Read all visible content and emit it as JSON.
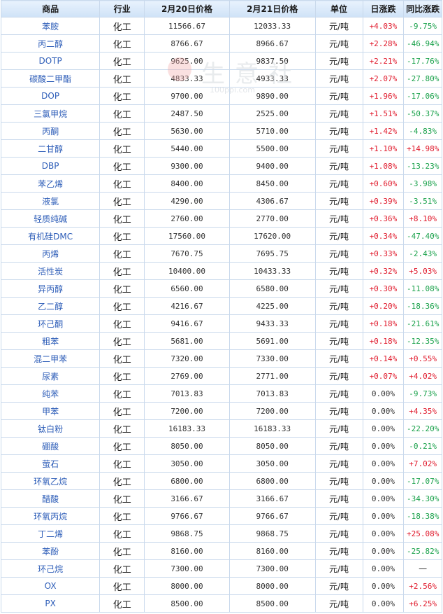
{
  "headers": [
    "商品",
    "行业",
    "2月20日价格",
    "2月21日价格",
    "单位",
    "日涨跌",
    "同比涨跌"
  ],
  "watermark": {
    "text": "生意社",
    "url": "100ppi.com"
  },
  "rows": [
    {
      "name": "苯胺",
      "cat": "化工",
      "p1": "11566.67",
      "p2": "12033.33",
      "unit": "元/吨",
      "day": "+4.03%",
      "dayDir": "up",
      "yoy": "-9.75%",
      "yoyDir": "down"
    },
    {
      "name": "丙二醇",
      "cat": "化工",
      "p1": "8766.67",
      "p2": "8966.67",
      "unit": "元/吨",
      "day": "+2.28%",
      "dayDir": "up",
      "yoy": "-46.94%",
      "yoyDir": "down"
    },
    {
      "name": "DOTP",
      "cat": "化工",
      "p1": "9625.00",
      "p2": "9837.50",
      "unit": "元/吨",
      "day": "+2.21%",
      "dayDir": "up",
      "yoy": "-17.76%",
      "yoyDir": "down"
    },
    {
      "name": "碳酸二甲酯",
      "cat": "化工",
      "p1": "4833.33",
      "p2": "4933.33",
      "unit": "元/吨",
      "day": "+2.07%",
      "dayDir": "up",
      "yoy": "-27.80%",
      "yoyDir": "down"
    },
    {
      "name": "DOP",
      "cat": "化工",
      "p1": "9700.00",
      "p2": "9890.00",
      "unit": "元/吨",
      "day": "+1.96%",
      "dayDir": "up",
      "yoy": "-17.06%",
      "yoyDir": "down"
    },
    {
      "name": "三氯甲烷",
      "cat": "化工",
      "p1": "2487.50",
      "p2": "2525.00",
      "unit": "元/吨",
      "day": "+1.51%",
      "dayDir": "up",
      "yoy": "-50.37%",
      "yoyDir": "down"
    },
    {
      "name": "丙酮",
      "cat": "化工",
      "p1": "5630.00",
      "p2": "5710.00",
      "unit": "元/吨",
      "day": "+1.42%",
      "dayDir": "up",
      "yoy": "-4.83%",
      "yoyDir": "down"
    },
    {
      "name": "二甘醇",
      "cat": "化工",
      "p1": "5440.00",
      "p2": "5500.00",
      "unit": "元/吨",
      "day": "+1.10%",
      "dayDir": "up",
      "yoy": "+14.98%",
      "yoyDir": "up"
    },
    {
      "name": "DBP",
      "cat": "化工",
      "p1": "9300.00",
      "p2": "9400.00",
      "unit": "元/吨",
      "day": "+1.08%",
      "dayDir": "up",
      "yoy": "-13.23%",
      "yoyDir": "down"
    },
    {
      "name": "苯乙烯",
      "cat": "化工",
      "p1": "8400.00",
      "p2": "8450.00",
      "unit": "元/吨",
      "day": "+0.60%",
      "dayDir": "up",
      "yoy": "-3.98%",
      "yoyDir": "down"
    },
    {
      "name": "液氯",
      "cat": "化工",
      "p1": "4290.00",
      "p2": "4306.67",
      "unit": "元/吨",
      "day": "+0.39%",
      "dayDir": "up",
      "yoy": "-3.51%",
      "yoyDir": "down"
    },
    {
      "name": "轻质纯碱",
      "cat": "化工",
      "p1": "2760.00",
      "p2": "2770.00",
      "unit": "元/吨",
      "day": "+0.36%",
      "dayDir": "up",
      "yoy": "+8.10%",
      "yoyDir": "up"
    },
    {
      "name": "有机硅DMC",
      "cat": "化工",
      "p1": "17560.00",
      "p2": "17620.00",
      "unit": "元/吨",
      "day": "+0.34%",
      "dayDir": "up",
      "yoy": "-47.40%",
      "yoyDir": "down"
    },
    {
      "name": "丙烯",
      "cat": "化工",
      "p1": "7670.75",
      "p2": "7695.75",
      "unit": "元/吨",
      "day": "+0.33%",
      "dayDir": "up",
      "yoy": "-2.43%",
      "yoyDir": "down"
    },
    {
      "name": "活性炭",
      "cat": "化工",
      "p1": "10400.00",
      "p2": "10433.33",
      "unit": "元/吨",
      "day": "+0.32%",
      "dayDir": "up",
      "yoy": "+5.03%",
      "yoyDir": "up"
    },
    {
      "name": "异丙醇",
      "cat": "化工",
      "p1": "6560.00",
      "p2": "6580.00",
      "unit": "元/吨",
      "day": "+0.30%",
      "dayDir": "up",
      "yoy": "-11.08%",
      "yoyDir": "down"
    },
    {
      "name": "乙二醇",
      "cat": "化工",
      "p1": "4216.67",
      "p2": "4225.00",
      "unit": "元/吨",
      "day": "+0.20%",
      "dayDir": "up",
      "yoy": "-18.36%",
      "yoyDir": "down"
    },
    {
      "name": "环己酮",
      "cat": "化工",
      "p1": "9416.67",
      "p2": "9433.33",
      "unit": "元/吨",
      "day": "+0.18%",
      "dayDir": "up",
      "yoy": "-21.61%",
      "yoyDir": "down"
    },
    {
      "name": "粗苯",
      "cat": "化工",
      "p1": "5681.00",
      "p2": "5691.00",
      "unit": "元/吨",
      "day": "+0.18%",
      "dayDir": "up",
      "yoy": "-12.35%",
      "yoyDir": "down"
    },
    {
      "name": "混二甲苯",
      "cat": "化工",
      "p1": "7320.00",
      "p2": "7330.00",
      "unit": "元/吨",
      "day": "+0.14%",
      "dayDir": "up",
      "yoy": "+0.55%",
      "yoyDir": "up"
    },
    {
      "name": "尿素",
      "cat": "化工",
      "p1": "2769.00",
      "p2": "2771.00",
      "unit": "元/吨",
      "day": "+0.07%",
      "dayDir": "up",
      "yoy": "+4.02%",
      "yoyDir": "up"
    },
    {
      "name": "纯苯",
      "cat": "化工",
      "p1": "7013.83",
      "p2": "7013.83",
      "unit": "元/吨",
      "day": "0.00%",
      "dayDir": "zero",
      "yoy": "-9.73%",
      "yoyDir": "down"
    },
    {
      "name": "甲苯",
      "cat": "化工",
      "p1": "7200.00",
      "p2": "7200.00",
      "unit": "元/吨",
      "day": "0.00%",
      "dayDir": "zero",
      "yoy": "+4.35%",
      "yoyDir": "up"
    },
    {
      "name": "钛白粉",
      "cat": "化工",
      "p1": "16183.33",
      "p2": "16183.33",
      "unit": "元/吨",
      "day": "0.00%",
      "dayDir": "zero",
      "yoy": "-22.20%",
      "yoyDir": "down"
    },
    {
      "name": "硼酸",
      "cat": "化工",
      "p1": "8050.00",
      "p2": "8050.00",
      "unit": "元/吨",
      "day": "0.00%",
      "dayDir": "zero",
      "yoy": "-0.21%",
      "yoyDir": "down"
    },
    {
      "name": "萤石",
      "cat": "化工",
      "p1": "3050.00",
      "p2": "3050.00",
      "unit": "元/吨",
      "day": "0.00%",
      "dayDir": "zero",
      "yoy": "+7.02%",
      "yoyDir": "up"
    },
    {
      "name": "环氧乙烷",
      "cat": "化工",
      "p1": "6800.00",
      "p2": "6800.00",
      "unit": "元/吨",
      "day": "0.00%",
      "dayDir": "zero",
      "yoy": "-17.07%",
      "yoyDir": "down"
    },
    {
      "name": "醋酸",
      "cat": "化工",
      "p1": "3166.67",
      "p2": "3166.67",
      "unit": "元/吨",
      "day": "0.00%",
      "dayDir": "zero",
      "yoy": "-34.30%",
      "yoyDir": "down"
    },
    {
      "name": "环氧丙烷",
      "cat": "化工",
      "p1": "9766.67",
      "p2": "9766.67",
      "unit": "元/吨",
      "day": "0.00%",
      "dayDir": "zero",
      "yoy": "-18.38%",
      "yoyDir": "down"
    },
    {
      "name": "丁二烯",
      "cat": "化工",
      "p1": "9868.75",
      "p2": "9868.75",
      "unit": "元/吨",
      "day": "0.00%",
      "dayDir": "zero",
      "yoy": "+25.08%",
      "yoyDir": "up"
    },
    {
      "name": "苯酚",
      "cat": "化工",
      "p1": "8160.00",
      "p2": "8160.00",
      "unit": "元/吨",
      "day": "0.00%",
      "dayDir": "zero",
      "yoy": "-25.82%",
      "yoyDir": "down"
    },
    {
      "name": "环己烷",
      "cat": "化工",
      "p1": "7300.00",
      "p2": "7300.00",
      "unit": "元/吨",
      "day": "0.00%",
      "dayDir": "zero",
      "yoy": "—",
      "yoyDir": "dash"
    },
    {
      "name": "OX",
      "cat": "化工",
      "p1": "8000.00",
      "p2": "8000.00",
      "unit": "元/吨",
      "day": "0.00%",
      "dayDir": "zero",
      "yoy": "+2.56%",
      "yoyDir": "up"
    },
    {
      "name": "PX",
      "cat": "化工",
      "p1": "8500.00",
      "p2": "8500.00",
      "unit": "元/吨",
      "day": "0.00%",
      "dayDir": "zero",
      "yoy": "+6.25%",
      "yoyDir": "up"
    }
  ]
}
